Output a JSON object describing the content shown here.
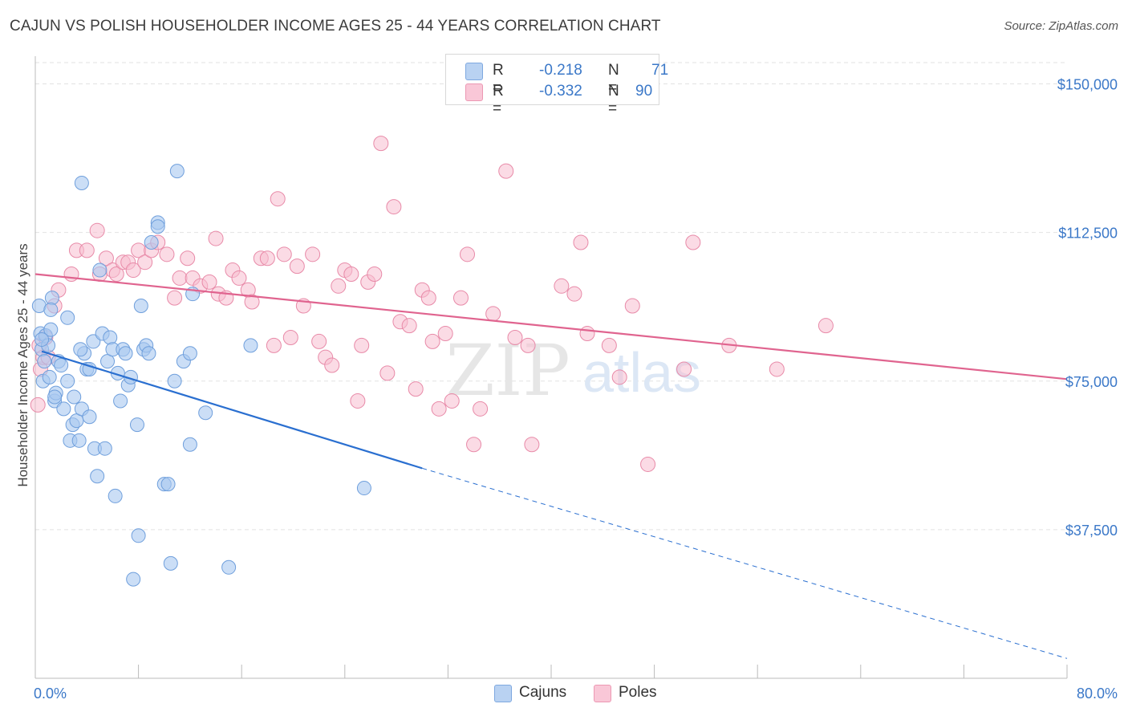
{
  "title": "CAJUN VS POLISH HOUSEHOLDER INCOME AGES 25 - 44 YEARS CORRELATION CHART",
  "source": "Source: ZipAtlas.com",
  "watermark": {
    "zip": "ZIP",
    "atlas": "atlas"
  },
  "legend": {
    "rows": [
      {
        "r_label": "R =",
        "r_value": "-0.218",
        "n_label": "N =",
        "n_value": "71"
      },
      {
        "r_label": "R =",
        "r_value": "-0.332",
        "n_label": "N =",
        "n_value": "90"
      }
    ]
  },
  "bottom_legend": [
    "Cajuns",
    "Poles"
  ],
  "colors": {
    "cajuns_fill": "#a9c8f0",
    "cajuns_stroke": "#6f9fdc",
    "cajuns_line": "#2a6fd0",
    "poles_fill": "#f7bdd0",
    "poles_stroke": "#e88aa8",
    "poles_line": "#e0648f",
    "axis_text": "#3b78c8",
    "grid": "#e2e2e2"
  },
  "chart_data": {
    "type": "scatter",
    "title": "CAJUN VS POLISH HOUSEHOLDER INCOME AGES 25 - 44 YEARS CORRELATION CHART",
    "xlabel": "",
    "ylabel": "Householder Income Ages 25 - 44 years",
    "xlim": [
      0,
      80
    ],
    "ylim": [
      0,
      157000
    ],
    "x_tick_labels": [
      "0.0%",
      "80.0%"
    ],
    "y_ticks": [
      37500,
      75000,
      112500,
      150000
    ],
    "y_tick_labels": [
      "$37,500",
      "$75,000",
      "$112,500",
      "$150,000"
    ],
    "series": [
      {
        "name": "Cajuns",
        "points": [
          [
            0.3,
            94000
          ],
          [
            0.4,
            87000
          ],
          [
            0.5,
            83000
          ],
          [
            0.6,
            75000
          ],
          [
            0.7,
            80000
          ],
          [
            0.8,
            86500
          ],
          [
            1.0,
            84000
          ],
          [
            1.1,
            76000
          ],
          [
            1.2,
            88000
          ],
          [
            1.3,
            96000
          ],
          [
            1.5,
            70000
          ],
          [
            1.6,
            72000
          ],
          [
            1.8,
            80000
          ],
          [
            2.0,
            79000
          ],
          [
            2.2,
            68000
          ],
          [
            2.5,
            91000
          ],
          [
            2.7,
            60000
          ],
          [
            2.9,
            64000
          ],
          [
            3.0,
            71000
          ],
          [
            3.2,
            65000
          ],
          [
            3.4,
            60000
          ],
          [
            3.6,
            68000
          ],
          [
            3.8,
            82000
          ],
          [
            4.0,
            78000
          ],
          [
            4.2,
            66000
          ],
          [
            4.5,
            85000
          ],
          [
            4.6,
            58000
          ],
          [
            4.8,
            51000
          ],
          [
            5.0,
            103000
          ],
          [
            5.2,
            87000
          ],
          [
            5.4,
            58000
          ],
          [
            5.6,
            80000
          ],
          [
            5.8,
            86000
          ],
          [
            6.0,
            83000
          ],
          [
            6.2,
            46000
          ],
          [
            6.4,
            77000
          ],
          [
            6.6,
            70000
          ],
          [
            6.8,
            83000
          ],
          [
            7.2,
            74000
          ],
          [
            7.4,
            76000
          ],
          [
            7.6,
            25000
          ],
          [
            7.9,
            64000
          ],
          [
            8.0,
            36000
          ],
          [
            8.2,
            94000
          ],
          [
            8.4,
            83000
          ],
          [
            8.6,
            84000
          ],
          [
            8.8,
            82000
          ],
          [
            9.0,
            110000
          ],
          [
            9.5,
            115000
          ],
          [
            10.0,
            49000
          ],
          [
            10.3,
            49000
          ],
          [
            10.5,
            29000
          ],
          [
            10.8,
            75000
          ],
          [
            11.0,
            128000
          ],
          [
            11.5,
            80000
          ],
          [
            12.0,
            59000
          ],
          [
            12.2,
            97000
          ],
          [
            13.2,
            67000
          ],
          [
            15.0,
            28000
          ],
          [
            16.7,
            84000
          ],
          [
            25.5,
            48000
          ],
          [
            3.6,
            125000
          ],
          [
            9.5,
            114000
          ],
          [
            1.2,
            93000
          ],
          [
            0.5,
            85500
          ],
          [
            4.2,
            78000
          ],
          [
            2.5,
            75000
          ],
          [
            1.5,
            71000
          ],
          [
            7.0,
            82000
          ],
          [
            3.5,
            83000
          ],
          [
            12.0,
            82000
          ]
        ]
      },
      {
        "name": "Poles",
        "points": [
          [
            0.2,
            69000
          ],
          [
            0.3,
            84000
          ],
          [
            0.4,
            78000
          ],
          [
            0.6,
            81000
          ],
          [
            0.8,
            86000
          ],
          [
            1.0,
            81000
          ],
          [
            1.8,
            98000
          ],
          [
            1.5,
            94000
          ],
          [
            2.8,
            102000
          ],
          [
            3.2,
            108000
          ],
          [
            4.0,
            108000
          ],
          [
            4.8,
            113000
          ],
          [
            5.0,
            102000
          ],
          [
            5.5,
            106000
          ],
          [
            6.0,
            103000
          ],
          [
            6.3,
            102000
          ],
          [
            6.8,
            105000
          ],
          [
            7.2,
            105000
          ],
          [
            7.6,
            103000
          ],
          [
            8.0,
            108000
          ],
          [
            8.5,
            105000
          ],
          [
            9.0,
            108000
          ],
          [
            9.5,
            110000
          ],
          [
            10.2,
            107000
          ],
          [
            10.8,
            96000
          ],
          [
            11.2,
            101000
          ],
          [
            11.8,
            106000
          ],
          [
            12.2,
            101000
          ],
          [
            12.8,
            99000
          ],
          [
            13.5,
            100000
          ],
          [
            14.0,
            111000
          ],
          [
            14.2,
            97000
          ],
          [
            14.8,
            96000
          ],
          [
            15.3,
            103000
          ],
          [
            15.8,
            101000
          ],
          [
            16.5,
            98000
          ],
          [
            16.8,
            95000
          ],
          [
            17.5,
            106000
          ],
          [
            18.0,
            106000
          ],
          [
            18.5,
            84000
          ],
          [
            18.8,
            121000
          ],
          [
            19.3,
            107000
          ],
          [
            19.8,
            86000
          ],
          [
            20.3,
            104000
          ],
          [
            20.8,
            94000
          ],
          [
            21.5,
            107000
          ],
          [
            22.0,
            85000
          ],
          [
            22.5,
            81000
          ],
          [
            23.0,
            79000
          ],
          [
            23.5,
            99000
          ],
          [
            24.0,
            103000
          ],
          [
            24.5,
            102000
          ],
          [
            25.0,
            70000
          ],
          [
            25.3,
            84000
          ],
          [
            25.8,
            100000
          ],
          [
            26.3,
            102000
          ],
          [
            26.8,
            135000
          ],
          [
            27.3,
            77000
          ],
          [
            27.8,
            119000
          ],
          [
            28.3,
            90000
          ],
          [
            29.0,
            89000
          ],
          [
            29.5,
            73000
          ],
          [
            30.0,
            98000
          ],
          [
            30.5,
            96000
          ],
          [
            30.8,
            85000
          ],
          [
            31.3,
            68000
          ],
          [
            31.8,
            87000
          ],
          [
            32.3,
            70000
          ],
          [
            33.0,
            96000
          ],
          [
            33.5,
            107000
          ],
          [
            34.0,
            59000
          ],
          [
            34.5,
            68000
          ],
          [
            35.5,
            92000
          ],
          [
            36.5,
            128000
          ],
          [
            37.2,
            86000
          ],
          [
            38.5,
            59000
          ],
          [
            38.2,
            84000
          ],
          [
            40.8,
            99000
          ],
          [
            41.8,
            97000
          ],
          [
            42.3,
            110000
          ],
          [
            42.8,
            87000
          ],
          [
            44.5,
            84000
          ],
          [
            45.3,
            76000
          ],
          [
            46.3,
            94000
          ],
          [
            47.5,
            54000
          ],
          [
            50.3,
            78000
          ],
          [
            51.0,
            110000
          ],
          [
            53.8,
            84000
          ],
          [
            57.5,
            78000
          ],
          [
            61.3,
            89000
          ]
        ]
      }
    ],
    "trend_lines": [
      {
        "series": "Cajuns",
        "x_start": 0.5,
        "y_start": 82500,
        "x_solid_end": 30.0,
        "y_solid_end": 53000,
        "x_dash_end": 80.0,
        "y_dash_end": 5000
      },
      {
        "series": "Poles",
        "x_start": 0.0,
        "y_start": 102000,
        "x_end": 80.0,
        "y_end": 75500
      }
    ],
    "legend_position": "top-center"
  }
}
